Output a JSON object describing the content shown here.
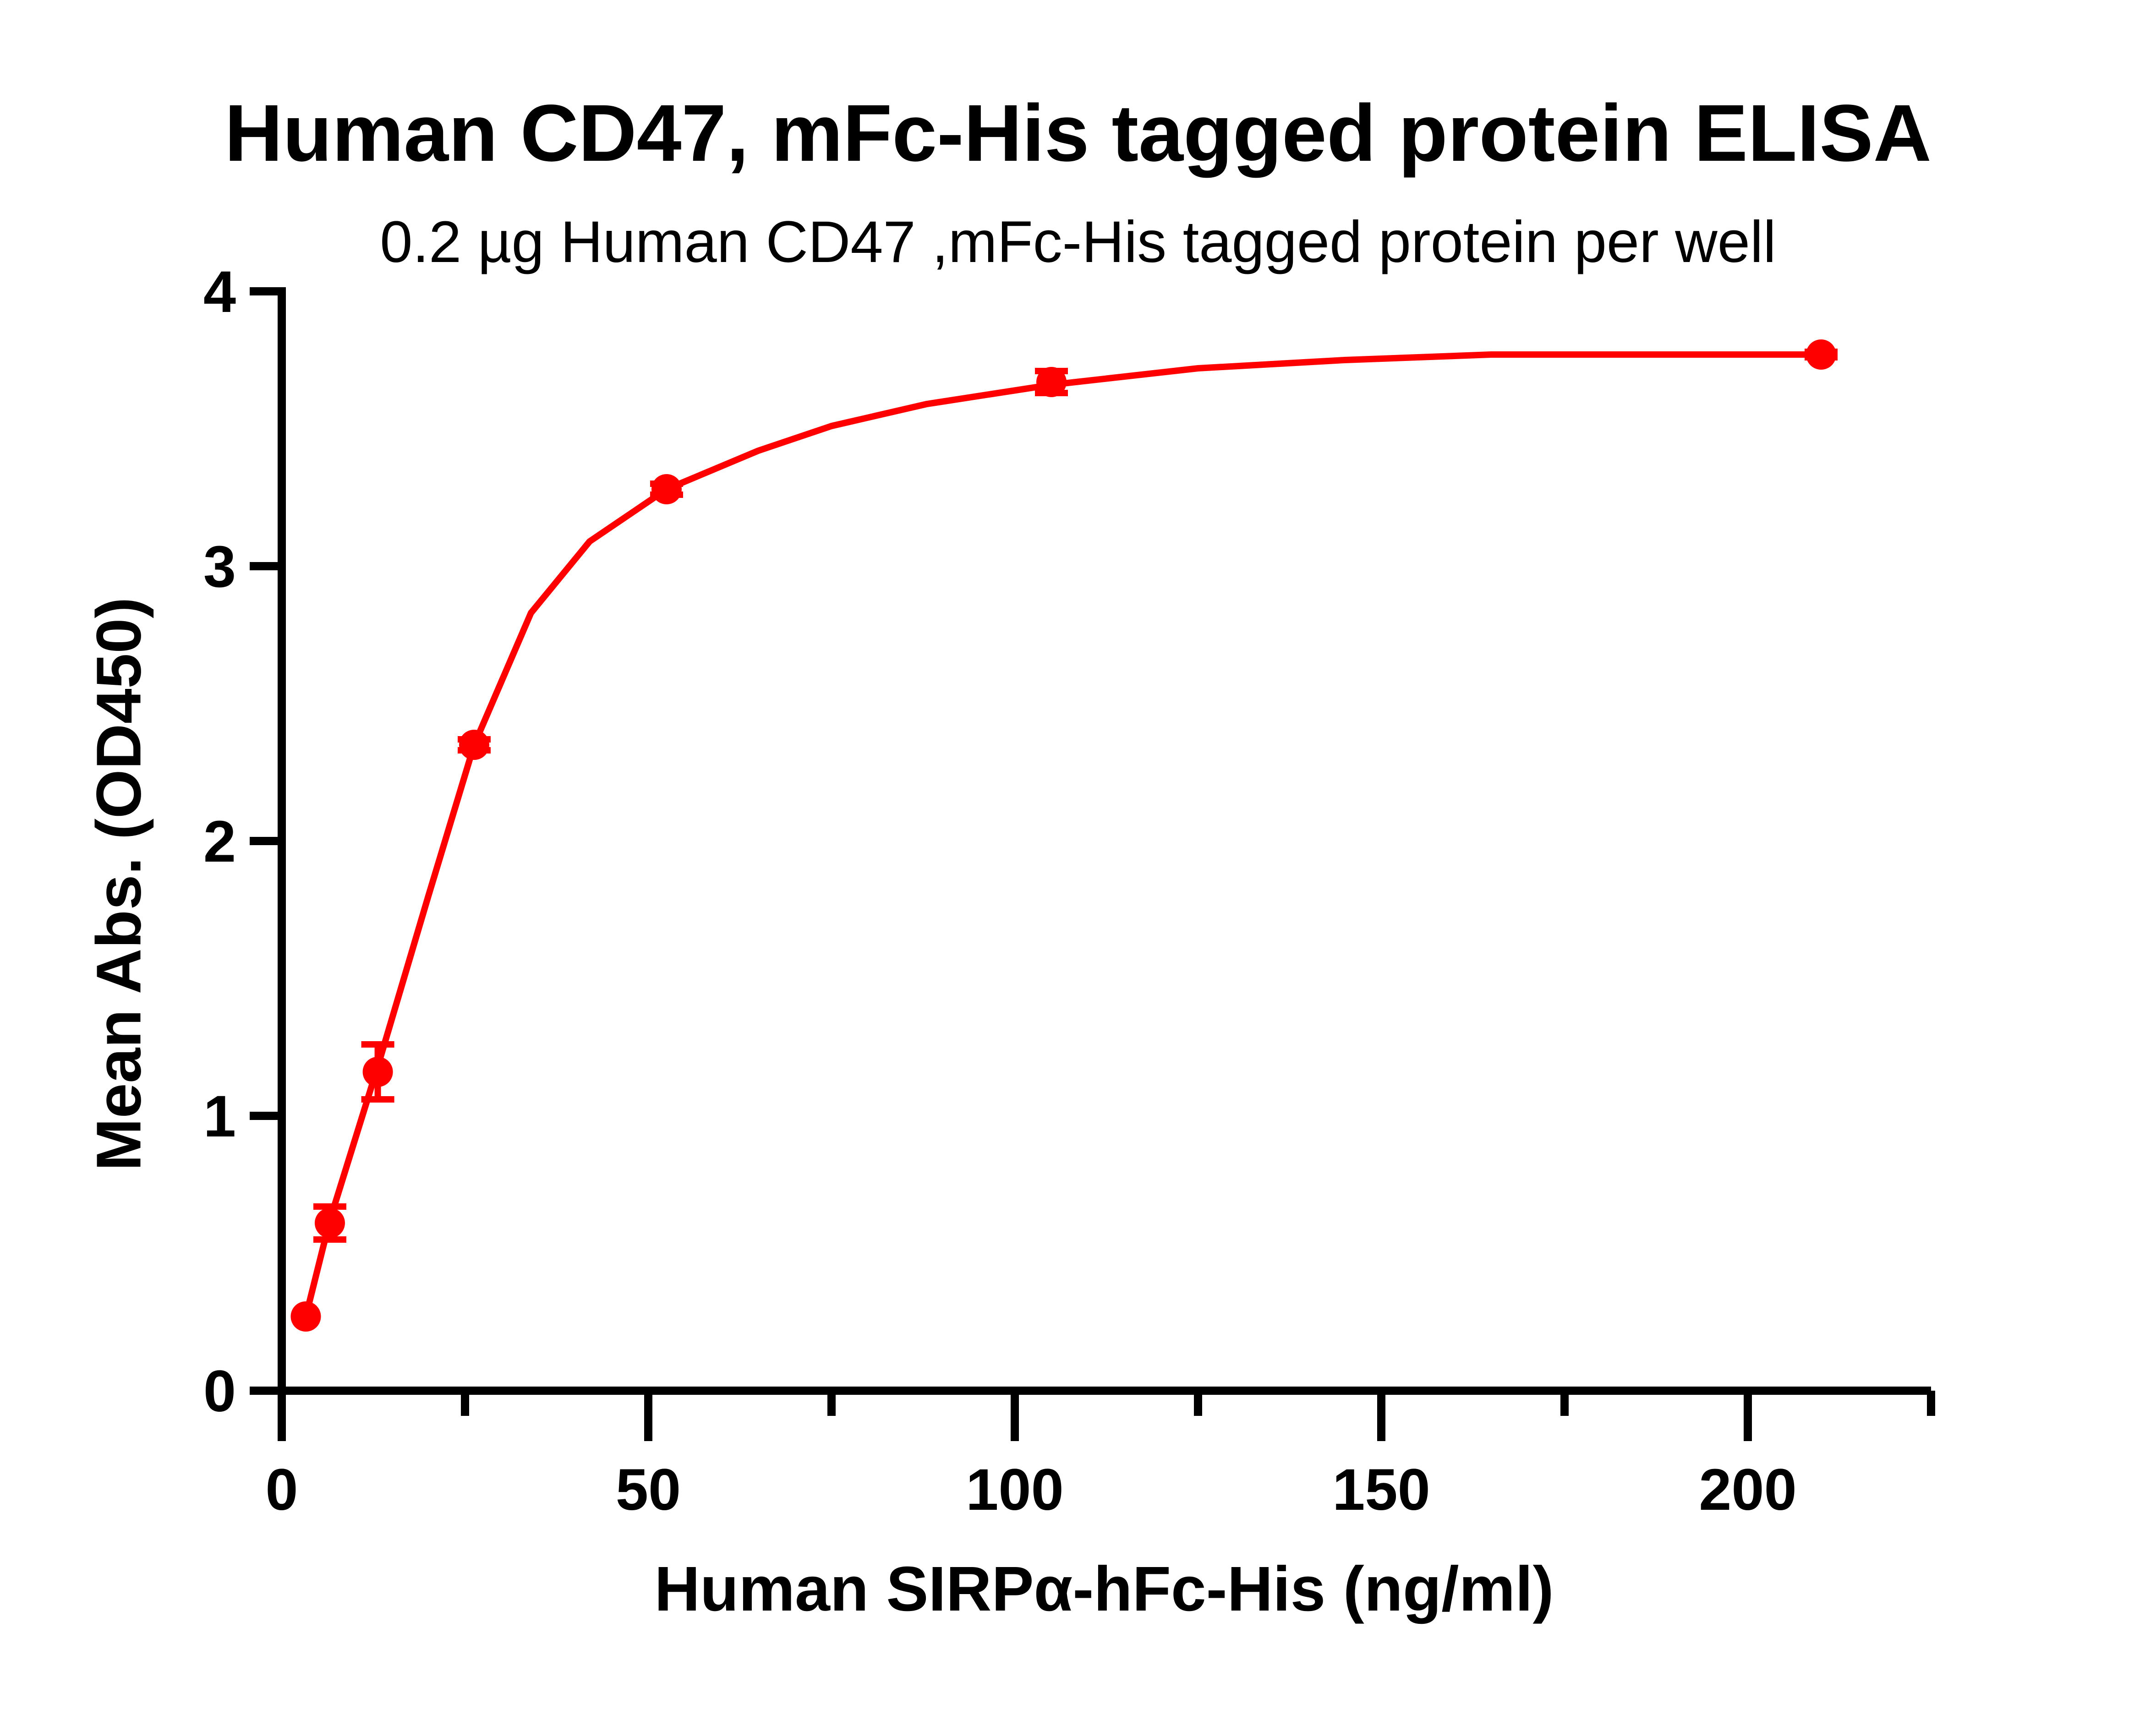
{
  "chart_data": {
    "type": "line",
    "title": "Human CD47, mFc-His tagged  protein ELISA",
    "subtitle": "0.2 µg Human CD47 ,mFc-His tagged protein per well",
    "xlabel": "Human SIRPα-hFc-His (ng/ml)",
    "ylabel": "Mean Abs. (OD450)",
    "xlim": [
      0,
      225
    ],
    "ylim": [
      0,
      4
    ],
    "x_ticks": [
      0,
      50,
      100,
      150,
      200
    ],
    "x_minor_ticks": [
      25,
      75,
      125,
      175,
      225
    ],
    "y_ticks": [
      0,
      1,
      2,
      3,
      4
    ],
    "grid": false,
    "legend": null,
    "color": "#ff0000",
    "series": [
      {
        "name": "Human SIRPα-hFc-His",
        "x": [
          3.28,
          6.56,
          13.1,
          26.25,
          52.5,
          105,
          210
        ],
        "y": [
          0.27,
          0.61,
          1.16,
          2.35,
          3.28,
          3.67,
          3.77
        ],
        "error": [
          0.0,
          0.06,
          0.1,
          0.02,
          0.02,
          0.04,
          0.01
        ]
      }
    ],
    "fit_curve": {
      "x": [
        3.28,
        6.56,
        13.1,
        20,
        26.25,
        34,
        42,
        52.5,
        65,
        75,
        88,
        105,
        125,
        145,
        165,
        190,
        210
      ],
      "y": [
        0.27,
        0.62,
        1.18,
        1.8,
        2.35,
        2.83,
        3.09,
        3.28,
        3.42,
        3.51,
        3.59,
        3.66,
        3.72,
        3.75,
        3.77,
        3.77,
        3.77
      ]
    }
  }
}
